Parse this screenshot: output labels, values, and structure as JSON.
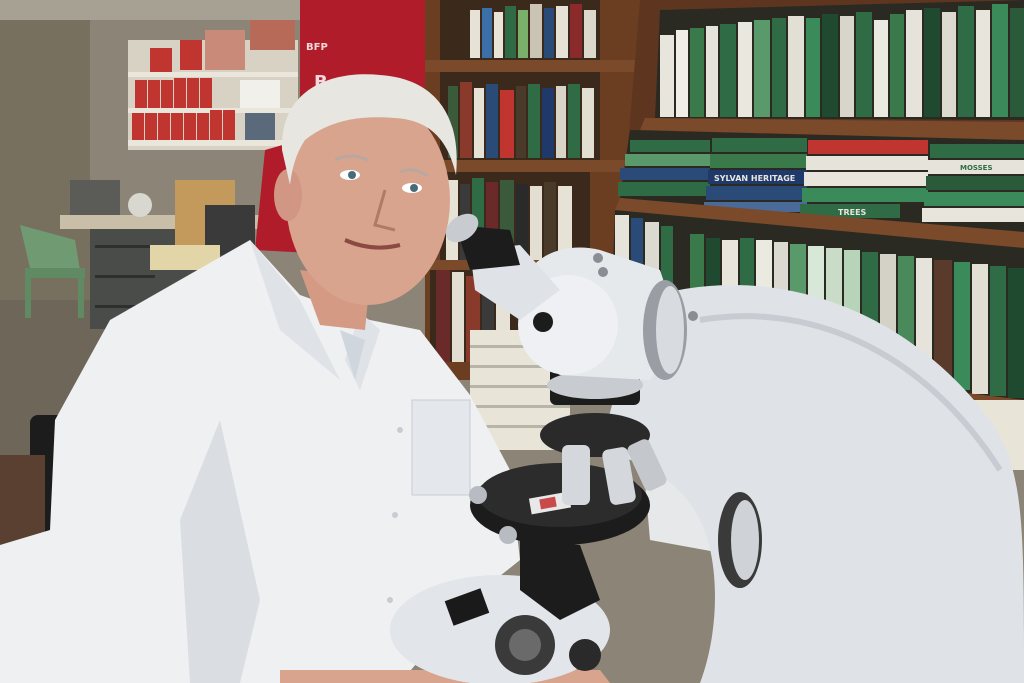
{
  "photo": {
    "subject": "scientist-with-microscope",
    "colors": {
      "wall": "#8c8577",
      "floor": "#6e6658",
      "shelf_wood": "#6b3e22",
      "red_panel": "#b01c2a",
      "coat": "#eef0f2",
      "microscope": "#dfe3e8",
      "hair": "#e8e6e0",
      "skin": "#d9a48e",
      "green_books": "#2f6b45"
    }
  },
  "labels": {
    "panel_logo": "BFP",
    "panel_big": "B",
    "book_spine_1": "SYLVAN HERITAGE",
    "book_spine_2": "TREES",
    "book_spine_3": "MOSSES"
  }
}
